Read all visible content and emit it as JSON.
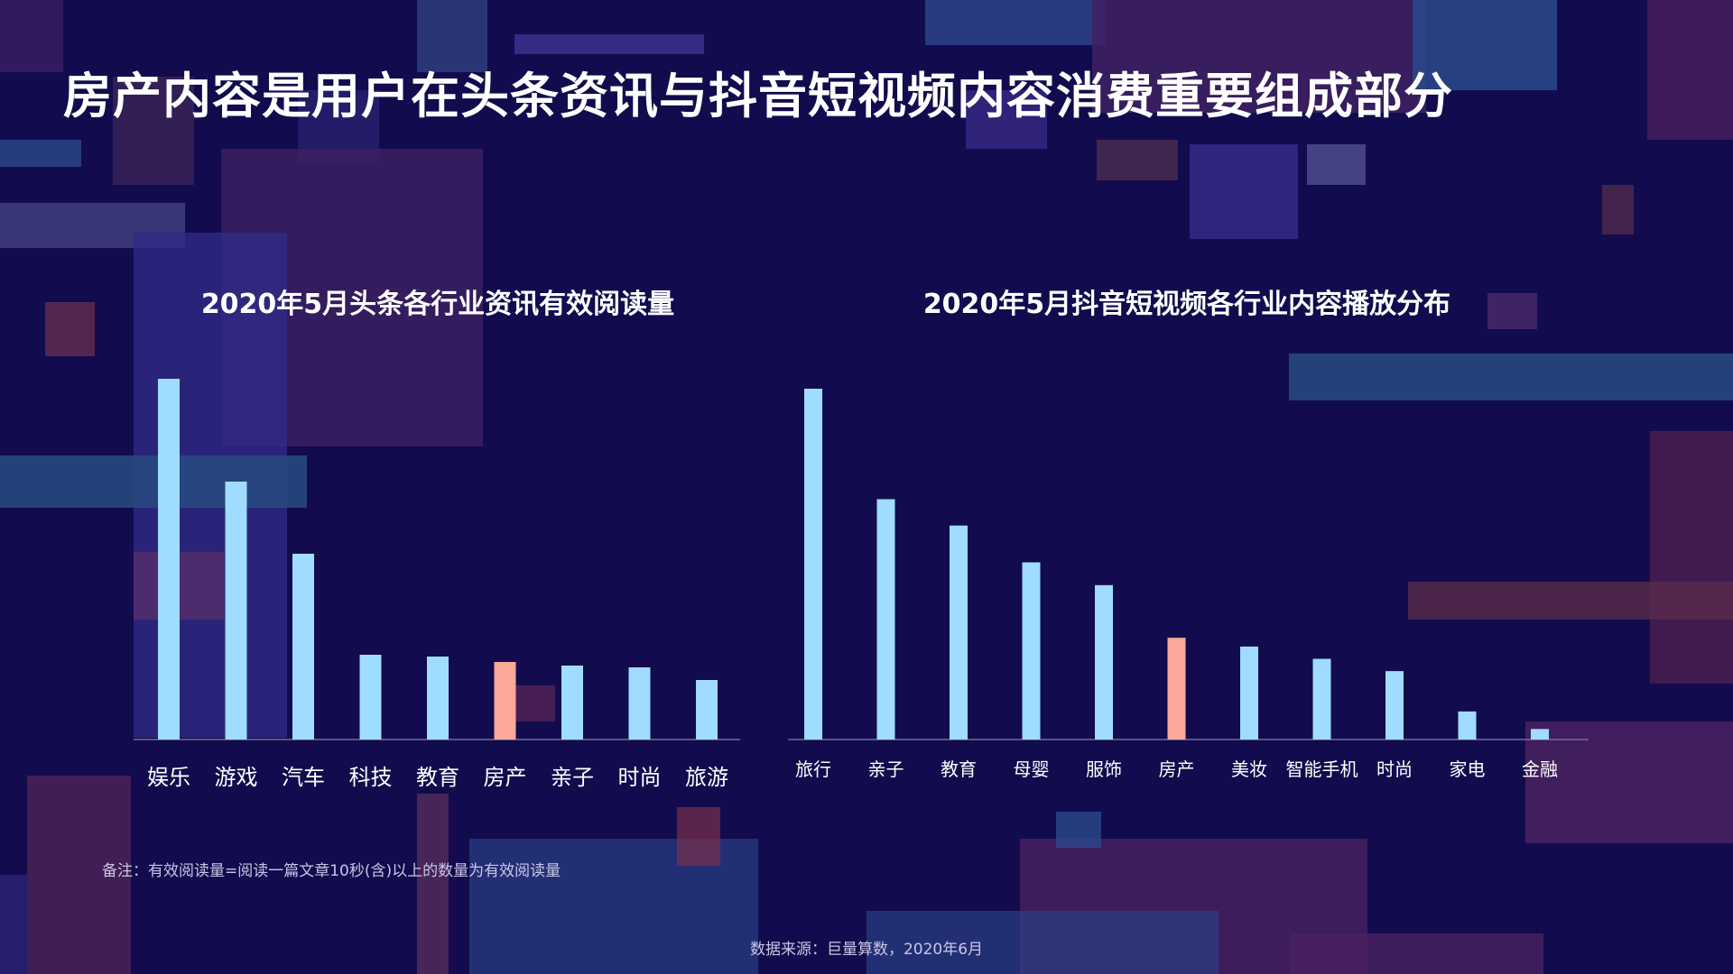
{
  "page": {
    "title": "房产内容是用户在头条资讯与抖音短视频内容消费重要组成部分",
    "footnote": "备注：有效阅读量=阅读一篇文章10秒(含)以上的数量为有效阅读量",
    "source": "数据来源：巨量算数，2020年6月"
  },
  "colors": {
    "background": "#120c4e",
    "bar": "#9fdcff",
    "highlight_bar": "#fca99a",
    "axis": "#6f6a9e",
    "label_text": "#ffffff"
  },
  "chart_data": [
    {
      "type": "bar",
      "title": "2020年5月头条各行业资讯有效阅读量",
      "categories": [
        "娱乐",
        "游戏",
        "汽车",
        "科技",
        "教育",
        "房产",
        "亲子",
        "时尚",
        "旅游"
      ],
      "values": [
        100,
        71.5,
        51.5,
        23.5,
        23,
        21.5,
        20.5,
        20,
        16.5
      ],
      "highlight": "房产",
      "xlabel": "",
      "ylabel": "",
      "ylim": [
        0,
        100
      ],
      "grid": false,
      "legend": "none"
    },
    {
      "type": "bar",
      "title": "2020年5月抖音短视频各行业内容播放分布",
      "categories": [
        "旅行",
        "亲子",
        "教育",
        "母婴",
        "服饰",
        "房产",
        "美妆",
        "智能手机",
        "时尚",
        "家电",
        "金融"
      ],
      "values": [
        100,
        68.5,
        61,
        50.5,
        44,
        29,
        26.5,
        23,
        19.5,
        8,
        3
      ],
      "highlight": "房产",
      "xlabel": "",
      "ylabel": "",
      "ylim": [
        0,
        100
      ],
      "grid": false,
      "legend": "none"
    }
  ]
}
